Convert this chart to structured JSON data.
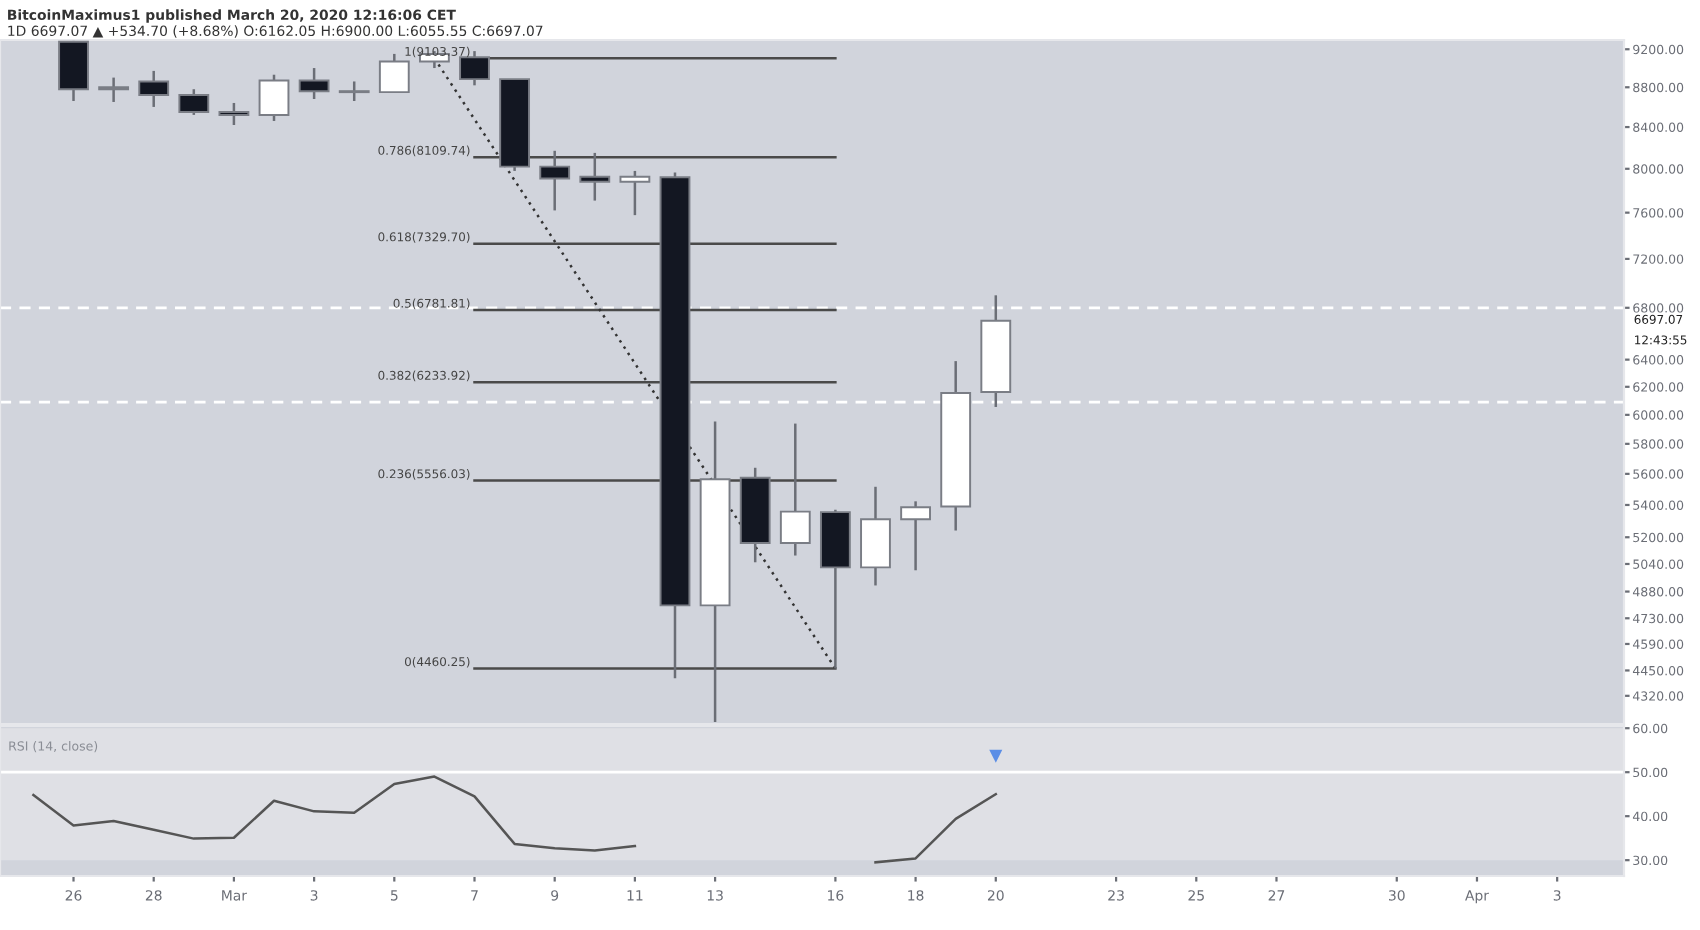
{
  "chart_data": [
    {
      "type": "candlestick",
      "title": "BitcoinMaximus1 published March 20, 2020 12:16:06 CET",
      "subtitle": "1D 6697.07 ▲ +534.70 (+8.68%) O:6162.05 H:6900.00 L:6055.55 C:6697.07",
      "x": [
        "2020-02-26",
        "2020-02-27",
        "2020-02-28",
        "2020-02-29",
        "2020-03-01",
        "2020-03-02",
        "2020-03-03",
        "2020-03-04",
        "2020-03-05",
        "2020-03-06",
        "2020-03-07",
        "2020-03-08",
        "2020-03-09",
        "2020-03-10",
        "2020-03-11",
        "2020-03-12",
        "2020-03-13",
        "2020-03-14",
        "2020-03-15",
        "2020-03-16",
        "2020-03-17",
        "2020-03-18",
        "2020-03-19",
        "2020-03-20"
      ],
      "ohlc": [
        [
          9280,
          9290,
          8660,
          8780
        ],
        [
          8780,
          8900,
          8650,
          8800
        ],
        [
          8860,
          8970,
          8600,
          8720
        ],
        [
          8720,
          8780,
          8520,
          8550
        ],
        [
          8550,
          8640,
          8420,
          8520
        ],
        [
          8520,
          8930,
          8460,
          8870
        ],
        [
          8870,
          9000,
          8680,
          8760
        ],
        [
          8760,
          8860,
          8660,
          8750
        ],
        [
          8750,
          9150,
          8750,
          9070
        ],
        [
          9070,
          9180,
          9000,
          9150
        ],
        [
          9115,
          9180,
          8820,
          8884
        ],
        [
          8884,
          8884,
          7980,
          8020
        ],
        [
          8020,
          8170,
          7620,
          7910
        ],
        [
          7925,
          8150,
          7708,
          7880
        ],
        [
          7880,
          7980,
          7578,
          7925
        ],
        [
          7921,
          7965,
          4410,
          4802
        ],
        [
          4802,
          5953,
          4190,
          5565
        ],
        [
          5574,
          5640,
          5050,
          5165
        ],
        [
          5165,
          5939,
          5090,
          5358
        ],
        [
          5355,
          5370,
          4460,
          5020
        ],
        [
          5020,
          5516,
          4915,
          5310
        ],
        [
          5310,
          5423,
          5003,
          5386
        ],
        [
          5390,
          6389,
          5241,
          6155
        ],
        [
          6162.05,
          6900,
          6055.55,
          6697.07
        ]
      ],
      "series": [
        {
          "type": "line",
          "name": "1(9103.37)",
          "x": [
            "2020-03-07",
            "2020-03-16"
          ],
          "values": [
            9103.37,
            9103.37
          ],
          "color": "#4a4a4a"
        },
        {
          "type": "line",
          "name": "0.786(8109.74)",
          "x": [
            "2020-03-07",
            "2020-03-16"
          ],
          "values": [
            8109.74,
            8109.74
          ],
          "color": "#4a4a4a"
        },
        {
          "type": "line",
          "name": "0.618(7329.70)",
          "x": [
            "2020-03-07",
            "2020-03-16"
          ],
          "values": [
            7329.7,
            7329.7
          ],
          "color": "#4a4a4a"
        },
        {
          "type": "line",
          "name": "0.5(6781.81)",
          "x": [
            "2020-03-07",
            "2020-03-16"
          ],
          "values": [
            6781.81,
            6781.81
          ],
          "color": "#4a4a4a"
        },
        {
          "type": "line",
          "name": "0.382(6233.92)",
          "x": [
            "2020-03-07",
            "2020-03-16"
          ],
          "values": [
            6233.92,
            6233.92
          ],
          "color": "#4a4a4a"
        },
        {
          "type": "line",
          "name": "0.236(5556.03)",
          "x": [
            "2020-03-07",
            "2020-03-16"
          ],
          "values": [
            5556.03,
            5556.03
          ],
          "color": "#4a4a4a"
        },
        {
          "type": "line",
          "name": "0(4460.25)",
          "x": [
            "2020-03-07",
            "2020-03-16"
          ],
          "values": [
            4460.25,
            4460.25
          ],
          "color": "#4a4a4a"
        },
        {
          "type": "line",
          "x": [
            "2020-03-06",
            "2020-03-16"
          ],
          "values": [
            9103.37,
            4460.25
          ],
          "color": "#333333",
          "line_style": "dotted"
        }
      ],
      "ref_lines": [
        {
          "axis": "y",
          "value": 6800,
          "color": "#ffffff",
          "line_style": "dashed"
        },
        {
          "axis": "y",
          "value": 6090,
          "color": "#ffffff",
          "line_style": "dashed"
        }
      ],
      "annotations": [
        "6697.07",
        "12:43:55"
      ],
      "log": "y",
      "xlim": [
        "2020-02-24T04:00",
        "2020-04-04T16:00"
      ],
      "ylim": [
        4180,
        9300
      ],
      "yticks": [
        {
          "value": 9200,
          "label": "9200.00"
        },
        {
          "value": 8800,
          "label": "8800.00"
        },
        {
          "value": 8400,
          "label": "8400.00"
        },
        {
          "value": 8000,
          "label": "8000.00"
        },
        {
          "value": 7600,
          "label": "7600.00"
        },
        {
          "value": 7200,
          "label": "7200.00"
        },
        {
          "value": 6800,
          "label": "6800.00"
        },
        {
          "value": 6400,
          "label": "6400.00"
        },
        {
          "value": 6200,
          "label": "6200.00"
        },
        {
          "value": 6000,
          "label": "6000.00"
        },
        {
          "value": 5800,
          "label": "5800.00"
        },
        {
          "value": 5600,
          "label": "5600.00"
        },
        {
          "value": 5400,
          "label": "5400.00"
        },
        {
          "value": 5200,
          "label": "5200.00"
        },
        {
          "value": 5040,
          "label": "5040.00"
        },
        {
          "value": 4880,
          "label": "4880.00"
        },
        {
          "value": 4730,
          "label": "4730.00"
        },
        {
          "value": 4590,
          "label": "4590.00"
        },
        {
          "value": 4450,
          "label": "4450.00"
        },
        {
          "value": 4320,
          "label": "4320.00"
        }
      ],
      "tick_labels": "y",
      "grid": false,
      "legend": false
    },
    {
      "type": "line",
      "title": "RSI (14, close)",
      "x": [
        "2020-02-25",
        "2020-02-26",
        "2020-02-27",
        "2020-02-28",
        "2020-02-29",
        "2020-03-01",
        "2020-03-02",
        "2020-03-03",
        "2020-03-04",
        "2020-03-05",
        "2020-03-06",
        "2020-03-07",
        "2020-03-08",
        "2020-03-09",
        "2020-03-10",
        "2020-03-11",
        "2020-03-12",
        "2020-03-13",
        "2020-03-14",
        "2020-03-15",
        "2020-03-16",
        "2020-03-17",
        "2020-03-18",
        "2020-03-19",
        "2020-03-20"
      ],
      "series": [
        {
          "color": "#555555",
          "values": [
            44.8,
            37.9,
            38.9,
            36.9,
            34.9,
            35.1,
            43.5,
            41.1,
            40.8,
            47.3,
            49.0,
            44.5,
            33.7,
            32.7,
            32.2,
            33.2,
            null,
            null,
            null,
            null,
            null,
            29.5,
            30.4,
            39.4,
            45.0
          ]
        },
        {
          "type": "scatter",
          "marker": "triangle",
          "color": "#5b8ee6",
          "x": [
            "2020-03-20"
          ],
          "values": [
            53.6
          ]
        }
      ],
      "ref_lines": [
        {
          "axis": "y",
          "value": 50,
          "color": "#ffffff"
        }
      ],
      "bands": [
        {
          "axis": "y",
          "from": 30,
          "to": 60,
          "color": "#dfe0e5"
        }
      ],
      "xlim": [
        "2020-02-24T04:00",
        "2020-04-04T16:00"
      ],
      "ylim": [
        26.4,
        60.5
      ],
      "xticks": [
        {
          "value": "2020-02-26",
          "label": "26"
        },
        {
          "value": "2020-02-28",
          "label": "28"
        },
        {
          "value": "2020-03-01",
          "label": "Mar"
        },
        {
          "value": "2020-03-03",
          "label": "3"
        },
        {
          "value": "2020-03-05",
          "label": "5"
        },
        {
          "value": "2020-03-07",
          "label": "7"
        },
        {
          "value": "2020-03-09",
          "label": "9"
        },
        {
          "value": "2020-03-11",
          "label": "11"
        },
        {
          "value": "2020-03-13",
          "label": "13"
        },
        {
          "value": "2020-03-16",
          "label": "16"
        },
        {
          "value": "2020-03-18",
          "label": "18"
        },
        {
          "value": "2020-03-20",
          "label": "20"
        },
        {
          "value": "2020-03-23",
          "label": "23"
        },
        {
          "value": "2020-03-25",
          "label": "25"
        },
        {
          "value": "2020-03-27",
          "label": "27"
        },
        {
          "value": "2020-03-30",
          "label": "30"
        },
        {
          "value": "2020-04-01",
          "label": "Apr"
        },
        {
          "value": "2020-04-03",
          "label": "3"
        }
      ],
      "yticks": [
        {
          "value": 60,
          "label": "60.00"
        },
        {
          "value": 50,
          "label": "50.00"
        },
        {
          "value": 40,
          "label": "40.00"
        },
        {
          "value": 30,
          "label": "30.00"
        }
      ],
      "grid": false,
      "legend": false
    }
  ]
}
